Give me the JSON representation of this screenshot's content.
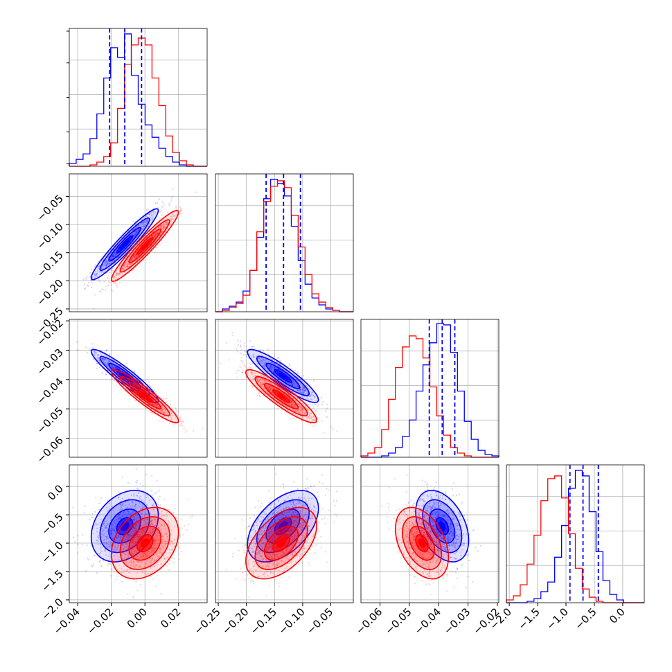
{
  "chart_data": {
    "type": "scatter",
    "plot_kind": "corner",
    "grid": true,
    "colors": {
      "blue": "#0000ff",
      "red": "#ff0000",
      "grid": "#b0b0b0"
    },
    "series": [
      {
        "color": "blue"
      },
      {
        "color": "red"
      }
    ],
    "params": [
      {
        "range": [
          -0.045,
          0.037
        ],
        "ticks": [
          -0.04,
          -0.02,
          0.0,
          0.02
        ],
        "tick_labels": [
          "−0.04",
          "−0.02",
          "0.00",
          "0.02"
        ],
        "hist": {
          "blue": [
            0.02,
            0.05,
            0.09,
            0.2,
            0.38,
            0.64,
            0.86,
            0.79,
            0.96,
            0.66,
            0.45,
            0.3,
            0.21,
            0.13,
            0.07,
            0.03,
            0.01,
            0.0,
            0.0,
            0.0
          ],
          "red": [
            0.0,
            0.0,
            0.0,
            0.01,
            0.03,
            0.07,
            0.17,
            0.42,
            0.74,
            0.88,
            0.93,
            0.88,
            0.64,
            0.44,
            0.22,
            0.1,
            0.04,
            0.01,
            0.0,
            0.0
          ]
        },
        "quantiles": [
          -0.021,
          -0.012,
          -0.002
        ],
        "marginal": {
          "blue_mean": -0.012,
          "red_mean": 0.0
        }
      },
      {
        "range": [
          -0.255,
          -0.01
        ],
        "ticks": [
          -0.25,
          -0.2,
          -0.15,
          -0.1,
          -0.05
        ],
        "tick_labels": [
          "−0.25",
          "−0.20",
          "−0.15",
          "−0.10",
          "−0.05"
        ],
        "hist": {
          "blue": [
            0.0,
            0.02,
            0.04,
            0.07,
            0.15,
            0.3,
            0.54,
            0.82,
            0.96,
            0.93,
            0.84,
            0.62,
            0.37,
            0.2,
            0.1,
            0.05,
            0.02,
            0.01,
            0.0,
            0.0
          ],
          "red": [
            0.0,
            0.01,
            0.03,
            0.06,
            0.12,
            0.3,
            0.58,
            0.8,
            0.91,
            0.95,
            0.9,
            0.7,
            0.47,
            0.27,
            0.13,
            0.07,
            0.03,
            0.01,
            0.0,
            0.0
          ]
        },
        "quantiles": [
          -0.165,
          -0.134,
          -0.104
        ]
      },
      {
        "range": [
          -0.0665,
          -0.0195
        ],
        "ticks": [
          -0.06,
          -0.05,
          -0.04,
          -0.03,
          -0.02
        ],
        "tick_labels": [
          "−0.06",
          "−0.05",
          "−0.04",
          "−0.03",
          "−0.02"
        ],
        "hist": {
          "blue": [
            0.0,
            0.0,
            0.0,
            0.01,
            0.03,
            0.07,
            0.15,
            0.27,
            0.48,
            0.67,
            0.83,
            0.97,
            0.96,
            0.76,
            0.48,
            0.26,
            0.13,
            0.05,
            0.02,
            0.01
          ],
          "red": [
            0.01,
            0.03,
            0.07,
            0.2,
            0.42,
            0.65,
            0.8,
            0.88,
            0.86,
            0.72,
            0.51,
            0.3,
            0.16,
            0.07,
            0.03,
            0.01,
            0.0,
            0.0,
            0.0,
            0.0
          ]
        },
        "quantiles": [
          -0.0432,
          -0.0388,
          -0.0345
        ]
      },
      {
        "range": [
          -2.05,
          0.38
        ],
        "ticks": [
          -2.0,
          -1.5,
          -1.0,
          -0.5,
          0.0
        ],
        "tick_labels": [
          "−2.0",
          "−1.5",
          "−1.0",
          "−0.5",
          "0.0"
        ],
        "hist": {
          "blue": [
            0.0,
            0.0,
            0.0,
            0.01,
            0.03,
            0.08,
            0.15,
            0.33,
            0.56,
            0.83,
            0.96,
            0.92,
            0.66,
            0.37,
            0.16,
            0.06,
            0.02,
            0.0,
            0.0,
            0.0
          ],
          "red": [
            0.02,
            0.05,
            0.13,
            0.28,
            0.49,
            0.74,
            0.9,
            0.92,
            0.76,
            0.5,
            0.25,
            0.1,
            0.04,
            0.01,
            0.0,
            0.0,
            0.0,
            0.0,
            0.0,
            0.0
          ]
        },
        "quantiles": [
          -0.93,
          -0.7,
          -0.43
        ]
      }
    ],
    "pairs": [
      {
        "x": 0,
        "y": 1,
        "blue": {
          "mean": [
            -0.012,
            -0.135
          ],
          "sd": [
            0.0095,
            0.03
          ],
          "r": 0.95
        },
        "red": {
          "mean": [
            0.0,
            -0.138
          ],
          "sd": [
            0.0095,
            0.03
          ],
          "r": 0.95
        }
      },
      {
        "x": 0,
        "y": 2,
        "blue": {
          "mean": [
            -0.012,
            -0.0388
          ],
          "sd": [
            0.0095,
            0.0043
          ],
          "r": -0.93
        },
        "red": {
          "mean": [
            0.0,
            -0.0457
          ],
          "sd": [
            0.0095,
            0.0043
          ],
          "r": -0.93
        }
      },
      {
        "x": 1,
        "y": 2,
        "blue": {
          "mean": [
            -0.135,
            -0.0388
          ],
          "sd": [
            0.03,
            0.0043
          ],
          "r": -0.9
        },
        "red": {
          "mean": [
            -0.138,
            -0.0457
          ],
          "sd": [
            0.03,
            0.0043
          ],
          "r": -0.9
        }
      },
      {
        "x": 0,
        "y": 3,
        "blue": {
          "mean": [
            -0.012,
            -0.7
          ],
          "sd": [
            0.0095,
            0.3
          ],
          "r": 0.3
        },
        "red": {
          "mean": [
            0.0,
            -1.0
          ],
          "sd": [
            0.0095,
            0.3
          ],
          "r": 0.3
        }
      },
      {
        "x": 1,
        "y": 3,
        "blue": {
          "mean": [
            -0.135,
            -0.7
          ],
          "sd": [
            0.03,
            0.3
          ],
          "r": 0.5
        },
        "red": {
          "mean": [
            -0.138,
            -1.0
          ],
          "sd": [
            0.03,
            0.3
          ],
          "r": 0.5
        }
      },
      {
        "x": 2,
        "y": 3,
        "blue": {
          "mean": [
            -0.0388,
            -0.7
          ],
          "sd": [
            0.0043,
            0.3
          ],
          "r": -0.4
        },
        "red": {
          "mean": [
            -0.0457,
            -1.0
          ],
          "sd": [
            0.0043,
            0.3
          ],
          "r": -0.4
        }
      }
    ]
  }
}
